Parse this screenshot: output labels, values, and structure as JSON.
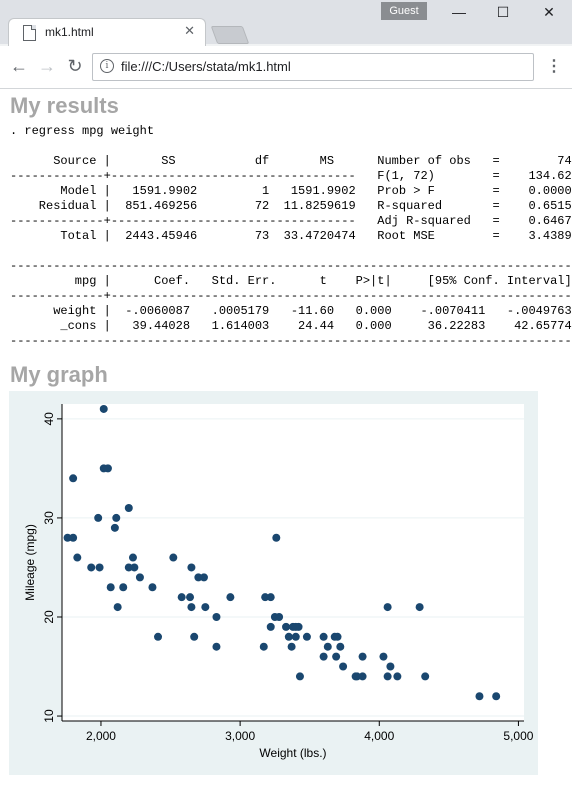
{
  "window": {
    "profile_label": "Guest",
    "tab_title": "mk1.html",
    "url": "file:///C:/Users/stata/mk1.html",
    "minimize_glyph": "—",
    "maximize_glyph": "☐",
    "close_glyph": "✕"
  },
  "page": {
    "results_heading": "My results",
    "graph_heading": "My graph",
    "stata_output": [
      ". regress mpg weight",
      "",
      "      Source |       SS           df       MS      Number of obs   =        74",
      "-------------+----------------------------------   F(1, 72)        =    134.62",
      "       Model |   1591.9902         1   1591.9902   Prob > F        =    0.0000",
      "    Residual |  851.469256        72  11.8259619   R-squared       =    0.6515",
      "-------------+----------------------------------   Adj R-squared   =    0.6467",
      "       Total |  2443.45946        73  33.4720474   Root MSE        =    3.4389",
      "",
      "------------------------------------------------------------------------------",
      "         mpg |      Coef.   Std. Err.      t    P>|t|     [95% Conf. Interval]",
      "-------------+----------------------------------------------------------------",
      "      weight |  -.0060087   .0005179   -11.60   0.000    -.0070411   -.0049763",
      "       _cons |   39.44028   1.614003    24.44   0.000     36.22283    42.65774",
      "------------------------------------------------------------------------------"
    ]
  },
  "chart_data": {
    "type": "scatter",
    "xlabel": "Weight (lbs.)",
    "ylabel": "Mileage (mpg)",
    "xlim": [
      1720,
      5040
    ],
    "ylim": [
      9.5,
      41.5
    ],
    "xticks": [
      2000,
      3000,
      4000,
      5000
    ],
    "xtick_labels": [
      "2,000",
      "3,000",
      "4,000",
      "5,000"
    ],
    "yticks": [
      10,
      20,
      30,
      40
    ],
    "ytick_labels": [
      "10",
      "20",
      "30",
      "40"
    ],
    "grid": true,
    "marker_color": "#1a476f",
    "plot_bg": "#ffffff",
    "graph_bg": "#eaf2f3",
    "points": [
      [
        2020,
        41
      ],
      [
        1800,
        34
      ],
      [
        2020,
        35
      ],
      [
        2050,
        35
      ],
      [
        1760,
        28
      ],
      [
        1800,
        28
      ],
      [
        3260,
        28
      ],
      [
        1830,
        26
      ],
      [
        2230,
        26
      ],
      [
        2520,
        26
      ],
      [
        1980,
        30
      ],
      [
        2110,
        30
      ],
      [
        2200,
        31
      ],
      [
        2100,
        29
      ],
      [
        1930,
        25
      ],
      [
        1990,
        25
      ],
      [
        2200,
        25
      ],
      [
        2240,
        25
      ],
      [
        2650,
        25
      ],
      [
        2280,
        24
      ],
      [
        2700,
        24
      ],
      [
        2740,
        24
      ],
      [
        2070,
        23
      ],
      [
        2160,
        23
      ],
      [
        2370,
        23
      ],
      [
        2580,
        22
      ],
      [
        2640,
        22
      ],
      [
        2930,
        22
      ],
      [
        3180,
        22
      ],
      [
        3220,
        22
      ],
      [
        2120,
        21
      ],
      [
        2650,
        21
      ],
      [
        2750,
        21
      ],
      [
        4060,
        21
      ],
      [
        4290,
        21
      ],
      [
        2830,
        20
      ],
      [
        3250,
        20
      ],
      [
        3280,
        20
      ],
      [
        3220,
        19
      ],
      [
        3330,
        19
      ],
      [
        3380,
        19
      ],
      [
        3420,
        19
      ],
      [
        3400,
        19
      ],
      [
        2410,
        18
      ],
      [
        2670,
        18
      ],
      [
        3350,
        18
      ],
      [
        3400,
        18
      ],
      [
        3480,
        18
      ],
      [
        3600,
        18
      ],
      [
        3680,
        18
      ],
      [
        3700,
        18
      ],
      [
        3170,
        17
      ],
      [
        3370,
        17
      ],
      [
        3630,
        17
      ],
      [
        3720,
        17
      ],
      [
        2830,
        17
      ],
      [
        3600,
        16
      ],
      [
        3690,
        16
      ],
      [
        3880,
        16
      ],
      [
        4030,
        16
      ],
      [
        3740,
        15
      ],
      [
        4080,
        15
      ],
      [
        3840,
        14
      ],
      [
        3430,
        14
      ],
      [
        4060,
        14
      ],
      [
        4130,
        14
      ],
      [
        4330,
        14
      ],
      [
        3880,
        14
      ],
      [
        3830,
        14
      ],
      [
        4720,
        12
      ],
      [
        4840,
        12
      ]
    ]
  }
}
